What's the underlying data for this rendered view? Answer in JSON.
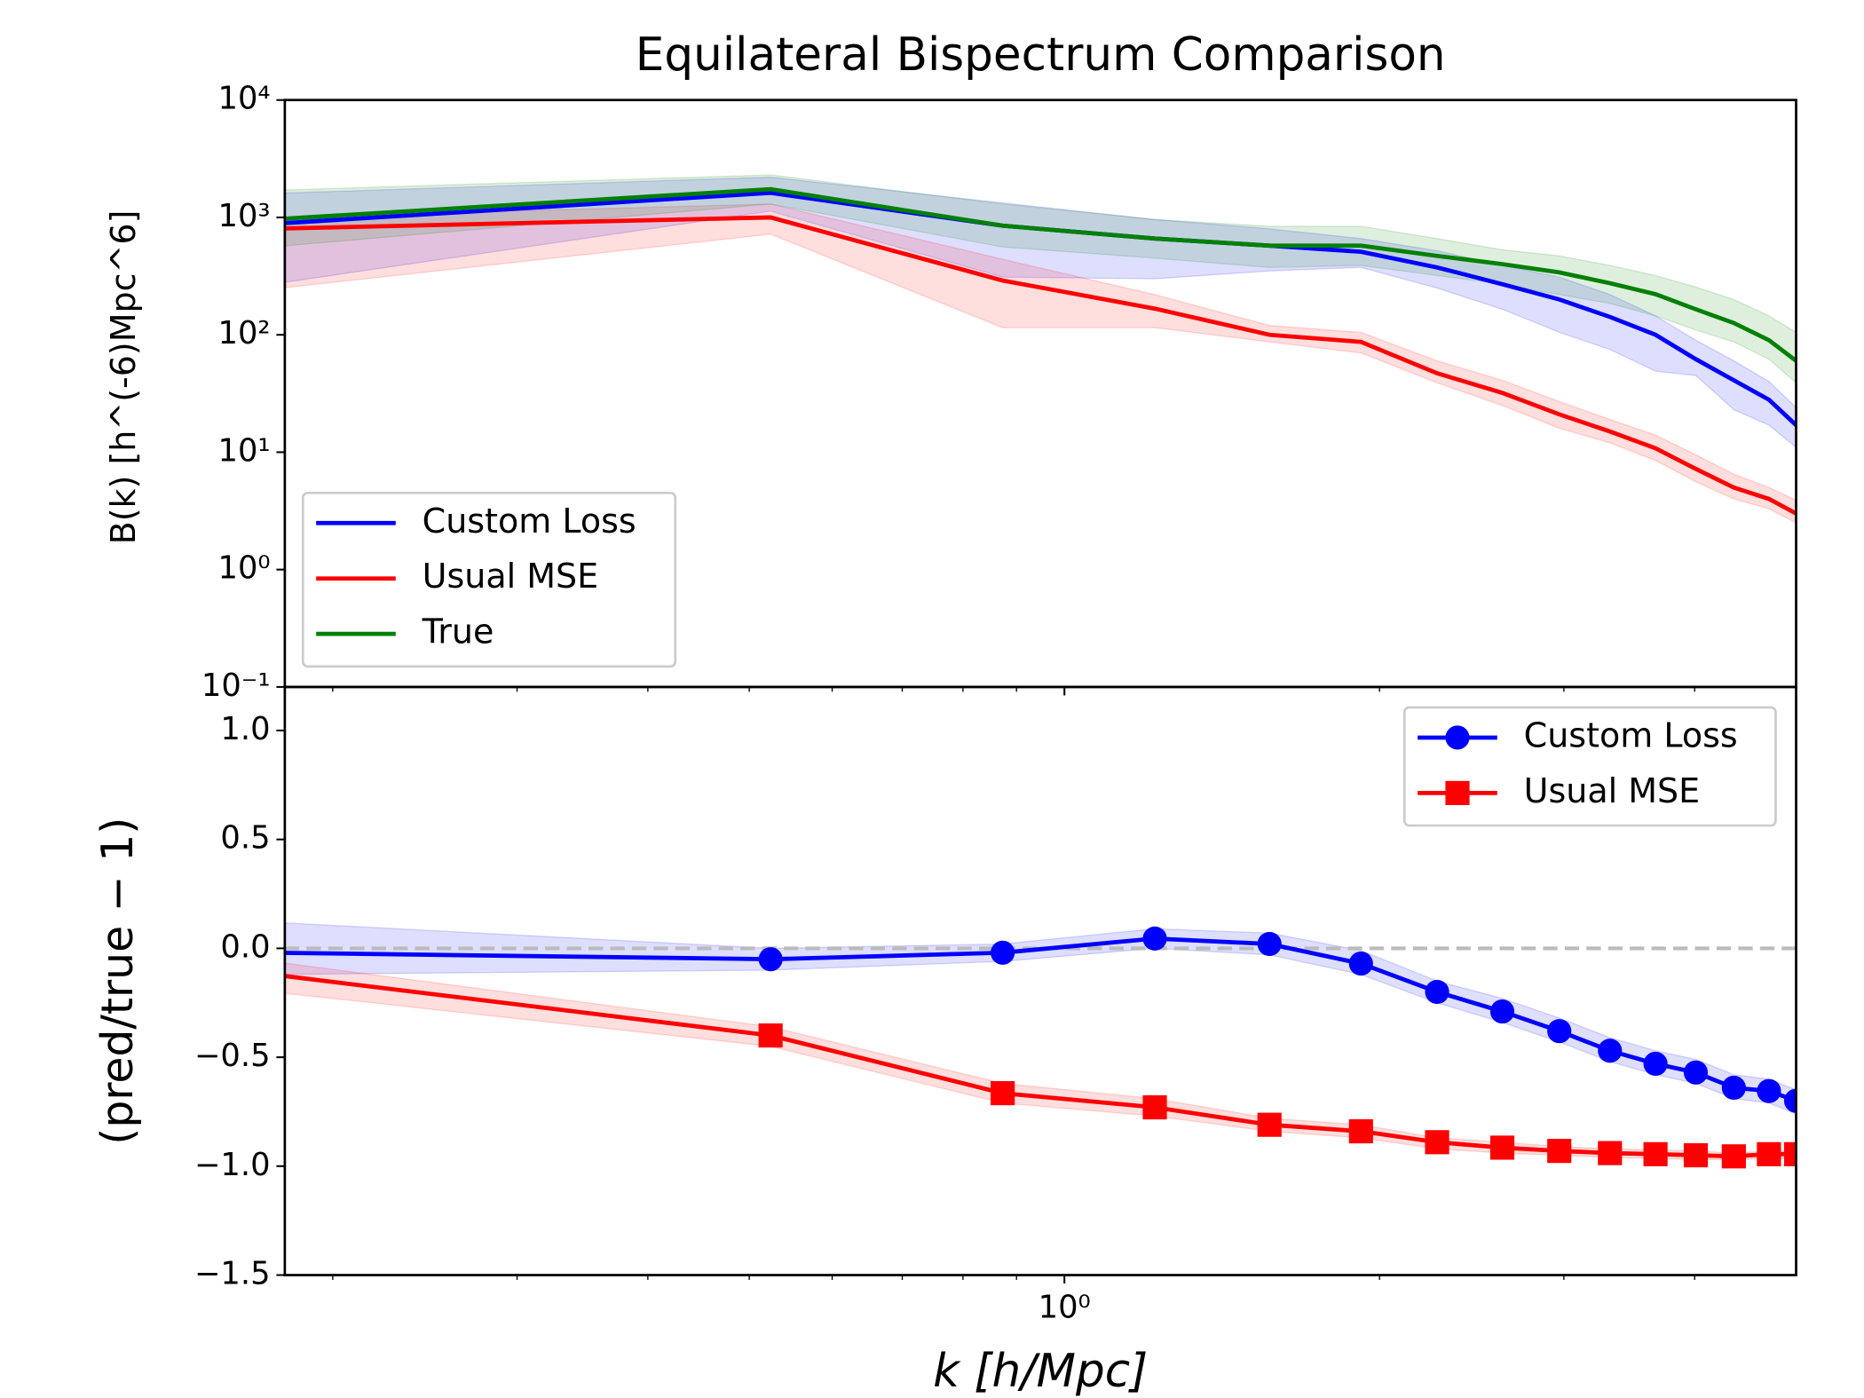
{
  "chart_data": [
    {
      "type": "line",
      "title": "Equilateral Bispectrum Comparison",
      "ylabel": "B(k) [h^(-6)Mpc^6]",
      "xscale": "log",
      "yscale": "log",
      "legend": "lower left",
      "xlim": [
        0.18,
        5.0
      ],
      "xticks": [
        {
          "value": 1,
          "label": "10⁰"
        }
      ],
      "xminorticks": [
        0.2,
        0.3,
        0.4,
        0.5,
        0.6,
        0.7,
        0.8,
        0.9,
        2,
        3,
        4
      ],
      "ylim": [
        0.1,
        10000
      ],
      "yticks": [
        {
          "value": 0.1,
          "label": "10⁻¹"
        },
        {
          "value": 1,
          "label": "10⁰"
        },
        {
          "value": 10,
          "label": "10¹"
        },
        {
          "value": 100,
          "label": "10²"
        },
        {
          "value": 1000,
          "label": "10³"
        },
        {
          "value": 10000,
          "label": "10⁴"
        }
      ],
      "x": [
        0.175,
        0.524,
        0.873,
        1.22,
        1.57,
        1.92,
        2.27,
        2.62,
        2.97,
        3.32,
        3.67,
        4.01,
        4.36,
        4.71,
        5.0
      ],
      "series": [
        {
          "name": "Custom Loss",
          "color": "#0000ff",
          "values": [
            880,
            1620,
            850,
            660,
            575,
            510,
            375,
            270,
            200,
            142,
            100,
            62,
            41,
            28,
            17
          ],
          "lower": [
            270,
            1130,
            310,
            300,
            350,
            375,
            250,
            165,
            105,
            75,
            49,
            45,
            23,
            17,
            11
          ],
          "upper": [
            1600,
            2200,
            1330,
            960,
            800,
            660,
            520,
            390,
            310,
            220,
            145,
            90,
            60,
            40,
            24
          ]
        },
        {
          "name": "Usual MSE",
          "color": "#ff0000",
          "values": [
            800,
            1000,
            290,
            167,
            100,
            87,
            47,
            32,
            21,
            15,
            10.8,
            7.2,
            5.0,
            4.0,
            3.0
          ],
          "lower": [
            245,
            720,
            115,
            115,
            87,
            70,
            39,
            25,
            16,
            12,
            8.5,
            5.6,
            4.0,
            3.3,
            2.5
          ],
          "upper": [
            1000,
            1300,
            440,
            220,
            120,
            105,
            60,
            41,
            27,
            19,
            14,
            9.5,
            6.5,
            5,
            3.9
          ]
        },
        {
          "name": "True",
          "color": "#008000",
          "values": [
            960,
            1740,
            850,
            660,
            575,
            575,
            470,
            400,
            340,
            275,
            222,
            165,
            126,
            90,
            60
          ],
          "lower": [
            560,
            1300,
            560,
            450,
            375,
            390,
            320,
            270,
            220,
            185,
            145,
            110,
            87,
            62,
            39
          ],
          "upper": [
            1700,
            2300,
            1300,
            960,
            840,
            840,
            660,
            530,
            470,
            390,
            320,
            255,
            200,
            145,
            105
          ]
        }
      ]
    },
    {
      "type": "line",
      "xlabel": "k [h/Mpc]",
      "ylabel": "(pred/true − 1)",
      "xscale": "log",
      "legend": "upper right",
      "hline": 0,
      "xlim": [
        0.18,
        5.0
      ],
      "xticks": [
        {
          "value": 1,
          "label": "10⁰"
        }
      ],
      "xminorticks": [
        0.2,
        0.3,
        0.4,
        0.5,
        0.6,
        0.7,
        0.8,
        0.9,
        2,
        3,
        4
      ],
      "ylim": [
        -1.5,
        1.2
      ],
      "yticks": [
        {
          "value": -1.5,
          "label": "−1.5"
        },
        {
          "value": -1.0,
          "label": "−1.0"
        },
        {
          "value": -0.5,
          "label": "−0.5"
        },
        {
          "value": 0,
          "label": "0.0"
        },
        {
          "value": 0.5,
          "label": "0.5"
        },
        {
          "value": 1.0,
          "label": "1.0"
        }
      ],
      "x": [
        0.175,
        0.524,
        0.873,
        1.22,
        1.57,
        1.92,
        2.27,
        2.62,
        2.97,
        3.32,
        3.67,
        4.01,
        4.36,
        4.71,
        5.0
      ],
      "series": [
        {
          "name": "Custom Loss",
          "color": "#0000ff",
          "marker": "o",
          "values": [
            -0.02,
            -0.05,
            -0.02,
            0.045,
            0.02,
            -0.07,
            -0.2,
            -0.29,
            -0.38,
            -0.47,
            -0.53,
            -0.57,
            -0.64,
            -0.655,
            -0.7
          ],
          "lower": [
            -0.12,
            -0.1,
            -0.06,
            0.0,
            -0.03,
            -0.12,
            -0.25,
            -0.34,
            -0.43,
            -0.52,
            -0.58,
            -0.62,
            -0.69,
            -0.71,
            -0.76
          ],
          "upper": [
            0.12,
            0.0,
            0.02,
            0.09,
            0.07,
            -0.01,
            -0.15,
            -0.23,
            -0.32,
            -0.41,
            -0.47,
            -0.51,
            -0.58,
            -0.6,
            -0.65
          ]
        },
        {
          "name": "Usual MSE",
          "color": "#ff0000",
          "marker": "s",
          "values": [
            -0.12,
            -0.4,
            -0.665,
            -0.73,
            -0.81,
            -0.84,
            -0.89,
            -0.915,
            -0.93,
            -0.94,
            -0.945,
            -0.95,
            -0.955,
            -0.945,
            -0.945
          ],
          "lower": [
            -0.2,
            -0.45,
            -0.71,
            -0.77,
            -0.84,
            -0.87,
            -0.92,
            -0.94,
            -0.95,
            -0.96,
            -0.965,
            -0.97,
            -0.97,
            -0.965,
            -0.965
          ],
          "upper": [
            -0.06,
            -0.36,
            -0.62,
            -0.69,
            -0.78,
            -0.81,
            -0.87,
            -0.89,
            -0.91,
            -0.92,
            -0.925,
            -0.93,
            -0.94,
            -0.93,
            -0.93
          ]
        }
      ]
    }
  ]
}
